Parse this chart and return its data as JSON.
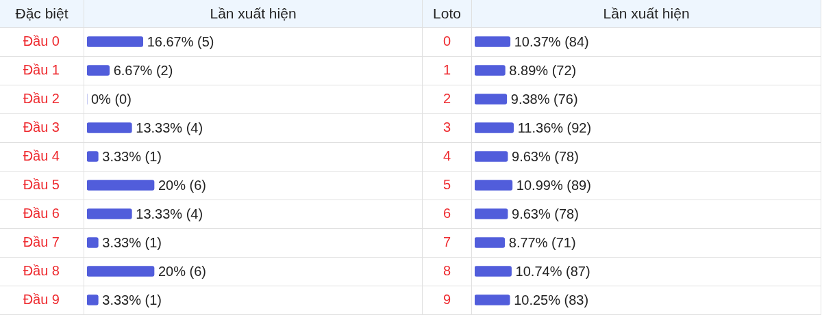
{
  "chart_data": [
    {
      "type": "bar",
      "orientation": "horizontal",
      "ylabel": "Đặc biệt",
      "xlabel": "Lần xuất hiện",
      "categories": [
        "Đầu 0",
        "Đầu 1",
        "Đầu 2",
        "Đầu 3",
        "Đầu 4",
        "Đầu 5",
        "Đầu 6",
        "Đầu 7",
        "Đầu 8",
        "Đầu 9"
      ],
      "values": [
        16.67,
        6.67,
        0,
        13.33,
        3.33,
        20,
        13.33,
        3.33,
        20,
        3.33
      ],
      "value_labels": [
        "16.67% (5)",
        "6.67% (2)",
        "0% (0)",
        "13.33% (4)",
        "3.33% (1)",
        "20% (6)",
        "13.33% (4)",
        "3.33% (1)",
        "20% (6)",
        "3.33% (1)"
      ],
      "color": "#515ddb",
      "xlim": [
        0,
        100
      ],
      "tick_labels": "y",
      "grid": "y"
    },
    {
      "type": "bar",
      "orientation": "horizontal",
      "ylabel": "Loto",
      "xlabel": "Lần xuất hiện",
      "categories": [
        "0",
        "1",
        "2",
        "3",
        "4",
        "5",
        "6",
        "7",
        "8",
        "9"
      ],
      "values": [
        10.37,
        8.89,
        9.38,
        11.36,
        9.63,
        10.99,
        9.63,
        8.77,
        10.74,
        10.25
      ],
      "value_labels": [
        "10.37% (84)",
        "8.89% (72)",
        "9.38% (76)",
        "11.36% (92)",
        "9.63% (78)",
        "10.99% (89)",
        "9.63% (78)",
        "8.77% (71)",
        "10.74% (87)",
        "10.25% (83)"
      ],
      "color": "#515ddb",
      "xlim": [
        0,
        100
      ],
      "tick_labels": "y",
      "grid": "y"
    }
  ]
}
